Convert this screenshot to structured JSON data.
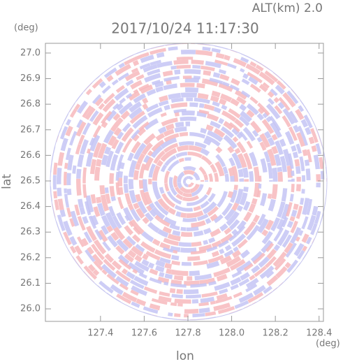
{
  "chart_data": {
    "type": "radar-ppi",
    "title": "2017/10/24 11:17:30",
    "subtitle": "ALT(km) 2.0",
    "x_label": "lon",
    "y_label": "lat",
    "x_unit": "(deg)",
    "y_unit": "(deg)",
    "xlim": [
      127.148,
      128.42
    ],
    "ylim": [
      25.951,
      27.038
    ],
    "xticks": [
      127.4,
      127.6,
      127.8,
      {
        "value": 128,
        "label": "128.0"
      },
      128.2,
      128.4
    ],
    "yticks": [
      {
        "value": 26,
        "label": "26.0"
      },
      26.1,
      26.2,
      26.3,
      26.4,
      26.5,
      26.6,
      26.7,
      26.8,
      26.9,
      {
        "value": 27,
        "label": "27.0"
      }
    ]
  }
}
